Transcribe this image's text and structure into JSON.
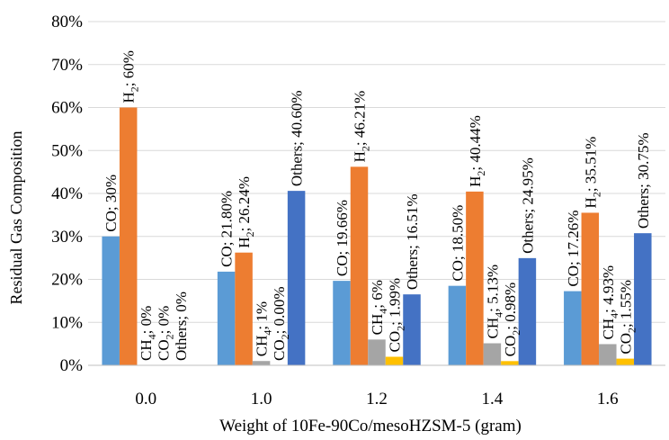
{
  "chart_data": {
    "type": "bar",
    "xlabel": "Weight of 10Fe-90Co/mesoHZSM-5 (gram)",
    "ylabel": "Residual Gas Composition",
    "ylim": [
      0,
      80
    ],
    "yticks": [
      "0%",
      "10%",
      "20%",
      "30%",
      "40%",
      "50%",
      "60%",
      "70%",
      "80%"
    ],
    "grid": true,
    "legend": "none",
    "categories": [
      "0.0",
      "1.0",
      "1.2",
      "1.4",
      "1.6"
    ],
    "series": [
      {
        "id": "co",
        "color": "#5b9bd5",
        "values": [
          30,
          21.8,
          19.66,
          18.5,
          17.26
        ],
        "labels": [
          "CO; 30%",
          "CO; 21.80%",
          "CO; 19.66%",
          "CO; 18.50%",
          "CO; 17.26%"
        ]
      },
      {
        "id": "h2",
        "color": "#ed7d31",
        "values": [
          60,
          26.24,
          46.21,
          40.44,
          35.51
        ],
        "labels": [
          "H₂; 60%",
          "H₂; 26.24%",
          "H₂; 46.21%",
          "H₂; 40.44%",
          "H₂; 35.51%"
        ]
      },
      {
        "id": "ch4",
        "color": "#a5a5a5",
        "values": [
          0,
          1,
          6,
          5.13,
          4.93
        ],
        "labels": [
          "CH₄; 0%",
          "CH₄; 1%",
          "CH₄; 6%",
          "CH₄; 5.13%",
          "CH₄; 4.93%"
        ]
      },
      {
        "id": "co2",
        "color": "#ffc000",
        "values": [
          0,
          0.0,
          1.99,
          0.98,
          1.55
        ],
        "labels": [
          "CO₂; 0%",
          "CO₂; 0.00%",
          "CO₂; 1.99%",
          "CO₂; 0.98%",
          "CO₂; 1.55%"
        ]
      },
      {
        "id": "others",
        "color": "#4472c4",
        "values": [
          0,
          40.6,
          16.51,
          24.95,
          30.75
        ],
        "labels": [
          "Others; 0%",
          "Others; 40.60%",
          "Others; 16.51%",
          "Others; 24.95%",
          "Others; 30.75%"
        ]
      }
    ]
  }
}
